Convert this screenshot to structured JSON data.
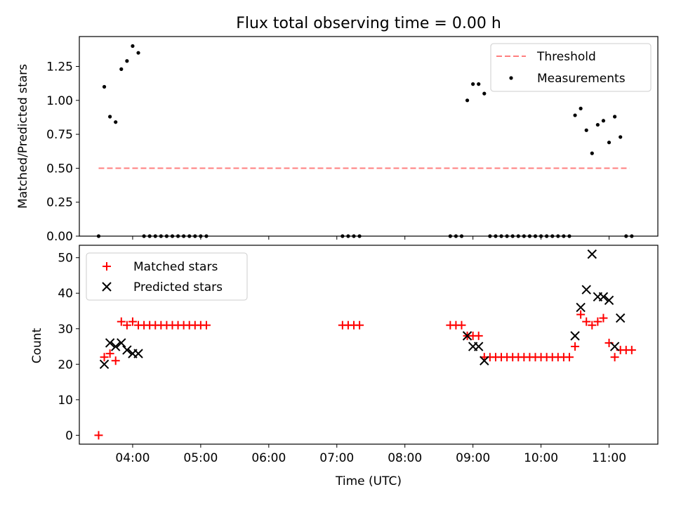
{
  "chart_data": [
    {
      "type": "scatter",
      "title": "Flux total observing time = 0.00 h",
      "xlabel": "",
      "ylabel": "Matched/Predicted stars",
      "xlim": [
        "03:13",
        "11:43"
      ],
      "ylim": [
        0,
        1.47
      ],
      "x_ticks": [
        "04:00",
        "05:00",
        "06:00",
        "07:00",
        "08:00",
        "09:00",
        "10:00",
        "11:00"
      ],
      "x_tick_labels_shown": false,
      "y_ticks": [
        "0.00",
        "0.25",
        "0.50",
        "0.75",
        "1.00",
        "1.25"
      ],
      "grid": false,
      "legend_position": "top-right",
      "threshold": {
        "name": "Threshold",
        "color": "#ff7f7f",
        "style": "dashed",
        "y": 0.5,
        "x_range": [
          "03:30",
          "11:18"
        ]
      },
      "series": [
        {
          "name": "Measurements",
          "marker": "dot",
          "color": "#000000",
          "x": [
            "03:30",
            "03:35",
            "03:40",
            "03:45",
            "03:50",
            "03:55",
            "04:00",
            "04:05",
            "04:10",
            "04:15",
            "04:20",
            "04:25",
            "04:30",
            "04:35",
            "04:40",
            "04:45",
            "04:50",
            "04:55",
            "05:00",
            "05:05",
            "07:05",
            "07:10",
            "07:15",
            "07:20",
            "08:40",
            "08:45",
            "08:50",
            "08:55",
            "09:00",
            "09:05",
            "09:10",
            "09:15",
            "09:20",
            "09:25",
            "09:30",
            "09:35",
            "09:40",
            "09:45",
            "09:50",
            "09:55",
            "10:00",
            "10:05",
            "10:10",
            "10:15",
            "10:20",
            "10:25",
            "10:30",
            "10:35",
            "10:40",
            "10:45",
            "10:50",
            "10:55",
            "11:00",
            "11:05",
            "11:10",
            "11:15",
            "11:20"
          ],
          "y": [
            0,
            1.1,
            0.88,
            0.84,
            1.23,
            1.29,
            1.4,
            1.35,
            0,
            0,
            0,
            0,
            0,
            0,
            0,
            0,
            0,
            0,
            0,
            0,
            0,
            0,
            0,
            0,
            0,
            0,
            0,
            1.0,
            1.12,
            1.12,
            1.05,
            0,
            0,
            0,
            0,
            0,
            0,
            0,
            0,
            0,
            0,
            0,
            0,
            0,
            0,
            0,
            0.89,
            0.94,
            0.78,
            0.61,
            0.82,
            0.85,
            0.69,
            0.88,
            0.73,
            0,
            0
          ]
        }
      ]
    },
    {
      "type": "scatter",
      "title": "",
      "xlabel": "Time (UTC)",
      "ylabel": "Count",
      "xlim": [
        "03:13",
        "11:43"
      ],
      "ylim": [
        -2.5,
        53.5
      ],
      "x_ticks": [
        "04:00",
        "05:00",
        "06:00",
        "07:00",
        "08:00",
        "09:00",
        "10:00",
        "11:00"
      ],
      "y_ticks": [
        "0",
        "10",
        "20",
        "30",
        "40",
        "50"
      ],
      "grid": false,
      "legend_position": "top-left",
      "series": [
        {
          "name": "Matched stars",
          "marker": "plus",
          "color": "#ff0000",
          "x": [
            "03:30",
            "03:35",
            "03:40",
            "03:45",
            "03:50",
            "03:55",
            "04:00",
            "04:05",
            "04:10",
            "04:15",
            "04:20",
            "04:25",
            "04:30",
            "04:35",
            "04:40",
            "04:45",
            "04:50",
            "04:55",
            "05:00",
            "05:05",
            "07:05",
            "07:10",
            "07:15",
            "07:20",
            "08:40",
            "08:45",
            "08:50",
            "08:55",
            "09:00",
            "09:05",
            "09:10",
            "09:15",
            "09:20",
            "09:25",
            "09:30",
            "09:35",
            "09:40",
            "09:45",
            "09:50",
            "09:55",
            "10:00",
            "10:05",
            "10:10",
            "10:15",
            "10:20",
            "10:25",
            "10:30",
            "10:35",
            "10:40",
            "10:45",
            "10:50",
            "10:55",
            "11:00",
            "11:05",
            "11:10",
            "11:15",
            "11:20"
          ],
          "y": [
            0,
            22,
            23,
            21,
            32,
            31,
            32,
            31,
            31,
            31,
            31,
            31,
            31,
            31,
            31,
            31,
            31,
            31,
            31,
            31,
            31,
            31,
            31,
            31,
            31,
            31,
            31,
            28,
            28,
            28,
            22,
            22,
            22,
            22,
            22,
            22,
            22,
            22,
            22,
            22,
            22,
            22,
            22,
            22,
            22,
            22,
            25,
            34,
            32,
            31,
            32,
            33,
            26,
            22,
            24,
            24,
            24
          ]
        },
        {
          "name": "Predicted stars",
          "marker": "x",
          "color": "#000000",
          "x": [
            "03:35",
            "03:40",
            "03:45",
            "03:50",
            "03:55",
            "04:00",
            "04:05",
            "08:55",
            "09:00",
            "09:05",
            "09:10",
            "10:30",
            "10:35",
            "10:40",
            "10:45",
            "10:50",
            "10:55",
            "11:00",
            "11:05",
            "11:10"
          ],
          "y": [
            20,
            26,
            25,
            26,
            24,
            23,
            23,
            28,
            25,
            25,
            21,
            28,
            36,
            41,
            51,
            39,
            39,
            38,
            25,
            33
          ]
        }
      ]
    }
  ]
}
